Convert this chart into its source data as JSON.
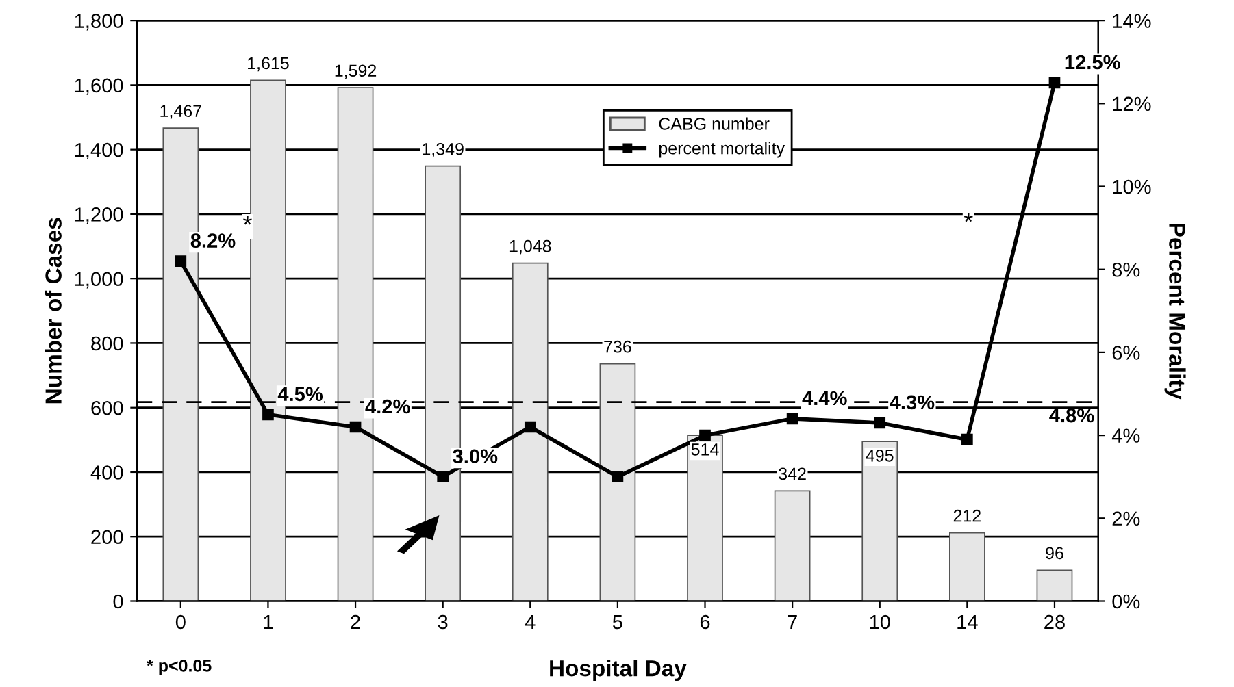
{
  "chart_data": {
    "type": "bar",
    "xlabel": "Hospital Day",
    "ylabel": "Number of Cases",
    "y2label": "Percent Morality",
    "categories": [
      "0",
      "1",
      "2",
      "3",
      "4",
      "5",
      "6",
      "7",
      "10",
      "14",
      "28"
    ],
    "series": [
      {
        "name": "CABG number",
        "color": "#e6e6e6",
        "values": [
          1467,
          1615,
          1592,
          1349,
          1048,
          736,
          514,
          342,
          495,
          212,
          96
        ],
        "value_labels": [
          "1,467",
          "1,615",
          "1,592",
          "1,349",
          "1,048",
          "736",
          "514",
          "342",
          "495",
          "212",
          "96"
        ]
      },
      {
        "name": "percent mortality",
        "type": "line",
        "axis": "y2",
        "color": "#000000",
        "marker": "square",
        "line_style": "solid",
        "values": [
          8.2,
          4.5,
          4.2,
          3.0,
          4.2,
          3.0,
          4.0,
          4.4,
          4.3,
          3.9,
          12.5
        ],
        "value_labels": [
          "8.2%",
          "4.5%",
          "4.2%",
          "3.0%",
          null,
          null,
          null,
          "4.4%",
          "4.3%",
          null,
          "12.5%"
        ]
      }
    ],
    "ylim": [
      0,
      1800
    ],
    "yticks": [
      0,
      200,
      400,
      600,
      800,
      {
        "value": 1000,
        "label": "1,000"
      },
      {
        "value": 1200,
        "label": "1,200"
      },
      {
        "value": 1400,
        "label": "1,400"
      },
      {
        "value": 1600,
        "label": "1,600"
      },
      {
        "value": 1800,
        "label": "1,800"
      }
    ],
    "y2lim": [
      0,
      14
    ],
    "y2ticks": [
      {
        "value": 0,
        "label": "0%"
      },
      {
        "value": 2,
        "label": "2%"
      },
      {
        "value": 4,
        "label": "4%"
      },
      {
        "value": 6,
        "label": "6%"
      },
      {
        "value": 8,
        "label": "8%"
      },
      {
        "value": 10,
        "label": "10%"
      },
      {
        "value": 12,
        "label": "12%"
      },
      {
        "value": 14,
        "label": "14%"
      }
    ],
    "ref_lines": [
      {
        "axis": "y2",
        "value": 4.8,
        "label": "4.8%",
        "line_style": "dashed",
        "color": "#000000"
      }
    ],
    "annotations": [
      "*",
      "*",
      "* p<0.05"
    ],
    "grid": "y",
    "legend": "top right"
  }
}
